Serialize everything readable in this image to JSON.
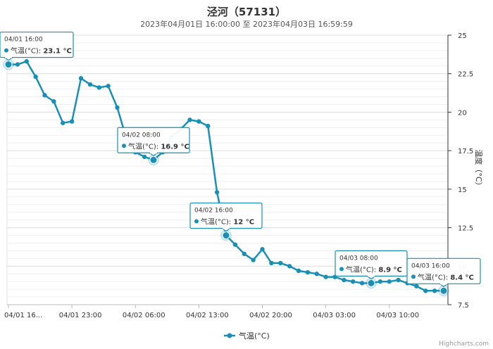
{
  "chart_data": {
    "type": "line",
    "title": "泾河（57131）",
    "subtitle": "2023年04月01日 16:00:00 至 2023年04月03日 16:59:59",
    "ylabel": "温度（°C）",
    "ylim": [
      7.5,
      25
    ],
    "yticks": [
      "7.5",
      "10",
      "12.5",
      "15",
      "17.5",
      "20",
      "22.5",
      "25"
    ],
    "xticks": [
      {
        "label": "04/01 16...",
        "index": 0
      },
      {
        "label": "04/01 23:00",
        "index": 7
      },
      {
        "label": "04/02 06:00",
        "index": 14
      },
      {
        "label": "04/02 13:00",
        "index": 21
      },
      {
        "label": "04/02 20:00",
        "index": 28
      },
      {
        "label": "04/03 03:00",
        "index": 35
      },
      {
        "label": "04/03 10:00",
        "index": 42
      }
    ],
    "grid": true,
    "legend_position": "bottom-center",
    "series": [
      {
        "name": "气温(°C)",
        "color": "#1a8fb5",
        "values": [
          23.1,
          23.1,
          23.3,
          22.3,
          21.1,
          20.7,
          19.3,
          19.4,
          22.2,
          21.8,
          21.6,
          21.7,
          20.3,
          18.3,
          17.4,
          17.1,
          16.9,
          17.4,
          18.4,
          18.9,
          19.5,
          19.4,
          19.1,
          14.8,
          12.0,
          11.4,
          10.8,
          10.4,
          11.1,
          10.2,
          10.2,
          10.0,
          9.7,
          9.6,
          9.5,
          9.3,
          9.3,
          9.1,
          9.0,
          8.9,
          8.9,
          9.0,
          9.0,
          9.1,
          8.9,
          8.7,
          8.4,
          8.4,
          8.4
        ]
      }
    ],
    "tooltips": [
      {
        "time": "04/01 16:00",
        "label": "气温(°C): ",
        "value": "23.1 °C",
        "index": 0
      },
      {
        "time": "04/02 08:00",
        "label": "气温(°C): ",
        "value": "16.9 °C",
        "index": 16
      },
      {
        "time": "04/02 16:00",
        "label": "气温(°C): ",
        "value": "12 °C",
        "index": 24
      },
      {
        "time": "04/03 08:00",
        "label": "气温(°C): ",
        "value": "8.9 °C",
        "index": 40
      },
      {
        "time": "04/03 16:00",
        "label": "气温(°C): ",
        "value": "8.4 °C",
        "index": 48
      }
    ]
  },
  "credit": "Highcharts.com",
  "colors": {
    "line": "#1a8fb5",
    "tooltip_border": "#1a8fb5",
    "grid": "#e6e6e6",
    "axis": "#333333"
  }
}
